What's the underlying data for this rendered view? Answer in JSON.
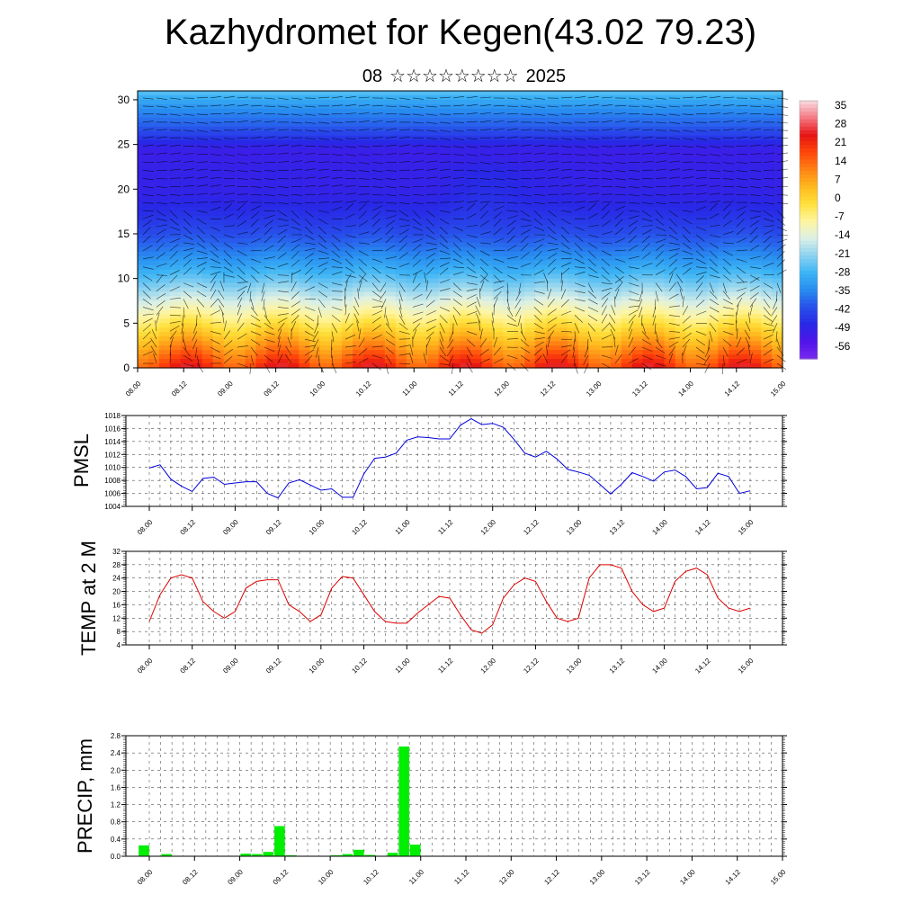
{
  "title": "Kazhydromet for Kegen(43.02 79.23)",
  "subtitle": {
    "day": "08",
    "stars": "☆☆☆☆☆☆☆☆",
    "year": "2025"
  },
  "colors": {
    "pmsl": "#0000dd",
    "temp": "#dd0000",
    "precip": "#00ee00",
    "grid": "#000000"
  },
  "chart_data": [
    {
      "type": "heatmap",
      "name": "vertical-section",
      "x_ticks": [
        "08.00",
        "08.12",
        "09.00",
        "09.12",
        "10.00",
        "10.12",
        "11.00",
        "11.12",
        "12.00",
        "12.12",
        "13.00",
        "13.12",
        "14.00",
        "14.12",
        "15.00"
      ],
      "y_ticks": [
        0,
        5,
        10,
        15,
        20,
        25,
        30
      ],
      "ylim": [
        0,
        31
      ],
      "colorbar_labels": [
        "35",
        "28",
        "21",
        "14",
        "7",
        "0",
        "-7",
        "-14",
        "-21",
        "-28",
        "-35",
        "-42",
        "-49",
        "-56"
      ],
      "colorbar_range": [
        -63,
        42
      ],
      "overlay": "wind barbs"
    },
    {
      "type": "line",
      "name": "pmsl",
      "ylabel": "PMSL",
      "ylim": [
        1004,
        1018
      ],
      "y_ticks": [
        1004,
        1006,
        1008,
        1010,
        1012,
        1014,
        1016,
        1018
      ],
      "x_ticks": [
        "08.00",
        "08.12",
        "09.00",
        "09.12",
        "10.00",
        "10.12",
        "11.00",
        "11.12",
        "12.00",
        "12.12",
        "13.00",
        "13.12",
        "14.00",
        "14.12",
        "15.00"
      ],
      "values": [
        1009.9,
        1010.4,
        1008.2,
        1007.1,
        1006.3,
        1008.3,
        1008.5,
        1007.4,
        1007.6,
        1007.8,
        1007.8,
        1006.0,
        1005.3,
        1007.6,
        1008.1,
        1007.3,
        1006.5,
        1006.7,
        1005.4,
        1005.4,
        1009.0,
        1011.4,
        1011.6,
        1012.2,
        1014.2,
        1014.7,
        1014.6,
        1014.4,
        1014.4,
        1016.5,
        1017.5,
        1016.6,
        1016.8,
        1016.2,
        1014.3,
        1012.2,
        1011.6,
        1012.5,
        1011.3,
        1009.7,
        1009.3,
        1008.8,
        1007.4,
        1005.9,
        1007.4,
        1009.2,
        1008.6,
        1007.9,
        1009.3,
        1009.6,
        1008.6,
        1006.7,
        1006.9,
        1009.1,
        1008.6,
        1006.0,
        1006.4
      ]
    },
    {
      "type": "line",
      "name": "temp",
      "ylabel": "TEMP at 2 M",
      "ylim": [
        4,
        32
      ],
      "y_ticks": [
        4,
        8,
        12,
        16,
        20,
        24,
        28,
        32
      ],
      "x_ticks": [
        "08.00",
        "08.12",
        "09.00",
        "09.12",
        "10.00",
        "10.12",
        "11.00",
        "11.12",
        "12.00",
        "12.12",
        "13.00",
        "13.12",
        "14.00",
        "14.12",
        "15.00"
      ],
      "values": [
        11,
        19,
        24,
        25,
        24,
        17,
        14,
        12,
        14,
        21,
        23,
        23.5,
        23.5,
        16,
        14,
        11,
        13,
        21,
        24.5,
        24,
        19,
        14,
        11,
        10.5,
        10.5,
        13.5,
        16,
        18.5,
        18,
        13,
        8.5,
        7.5,
        10,
        18,
        22,
        24,
        23,
        17,
        12,
        11,
        12,
        24,
        28,
        28,
        27,
        20,
        16,
        14,
        15,
        23,
        26,
        27,
        25,
        18,
        15,
        14,
        15
      ]
    },
    {
      "type": "bar",
      "name": "precip",
      "ylabel": "PRECIP, mm",
      "ylim": [
        0,
        2.8
      ],
      "y_ticks": [
        "0.0",
        "0.4",
        "0.8",
        "1.2",
        "1.6",
        "2.0",
        "2.4",
        "2.8"
      ],
      "x_ticks": [
        "08.00",
        "08.12",
        "09.00",
        "09.12",
        "10.00",
        "10.12",
        "11.00",
        "11.12",
        "12.00",
        "12.12",
        "13.00",
        "13.12",
        "14.00",
        "14.12",
        "15.00"
      ],
      "values": [
        0.25,
        0,
        0.05,
        0,
        0,
        0,
        0,
        0,
        0,
        0.06,
        0.05,
        0.1,
        0.7,
        0.02,
        0,
        0,
        0,
        0.02,
        0.05,
        0.15,
        0.03,
        0,
        0.08,
        2.55,
        0.27,
        0,
        0,
        0,
        0,
        0,
        0,
        0,
        0,
        0,
        0,
        0,
        0,
        0,
        0,
        0,
        0,
        0,
        0,
        0,
        0,
        0,
        0,
        0,
        0,
        0,
        0,
        0,
        0,
        0,
        0,
        0
      ]
    }
  ]
}
